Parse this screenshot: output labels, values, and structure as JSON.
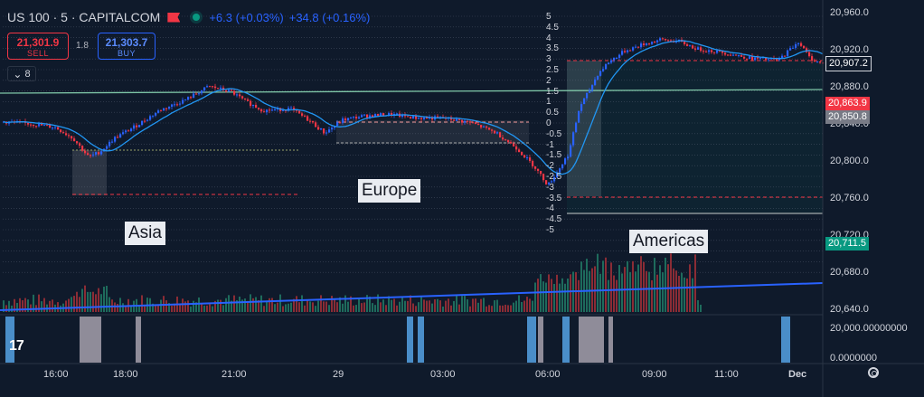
{
  "header": {
    "symbol": "US 100 · 5 · CAPITALCOM",
    "change_abs": "+6.3 (+0.03%)",
    "change_ext": "+34.8 (+0.16%)"
  },
  "trade": {
    "sell_price": "21,301.9",
    "sell_label": "SELL",
    "spread": "1.8",
    "buy_price": "21,303.7",
    "buy_label": "BUY"
  },
  "indicator_toggle": {
    "icon": "chevron-down-icon",
    "count": "8"
  },
  "sessions": {
    "asia": "Asia",
    "europe": "Europe",
    "americas": "Americas"
  },
  "price_axis": [
    "20,960.0",
    "20,920.0",
    "20,880.0",
    "20,840.0",
    "20,800.0",
    "20,760.0",
    "20,720.0",
    "20,680.0",
    "20,640.0"
  ],
  "price_badges": {
    "current": "20,907.2",
    "red": "20,863.9",
    "gray": "20,850.8",
    "green": "20,711.5"
  },
  "osc_axis": [
    "5",
    "4.5",
    "4",
    "3.5",
    "3",
    "2.5",
    "2",
    "1.5",
    "1",
    "0.5",
    "0",
    "-0.5",
    "-1",
    "-1.5",
    "-2",
    "-2.5",
    "-3",
    "-3.5",
    "-4",
    "-4.5",
    "-5"
  ],
  "lower_axis": [
    "20,000.00000000",
    "0.0000000"
  ],
  "time_axis": [
    "16:00",
    "18:00",
    "21:00",
    "29",
    "03:00",
    "06:00",
    "09:00",
    "11:00",
    "Dec"
  ],
  "colors": {
    "background": "#0f1a2b",
    "up": "#2962ff",
    "down": "#f23645",
    "ma": "#2196f3",
    "accent_green": "#089981"
  },
  "chart_data": {
    "type": "candlestick",
    "ylim": [
      20630,
      20970
    ],
    "ma_line_color": "#2196f3"
  }
}
